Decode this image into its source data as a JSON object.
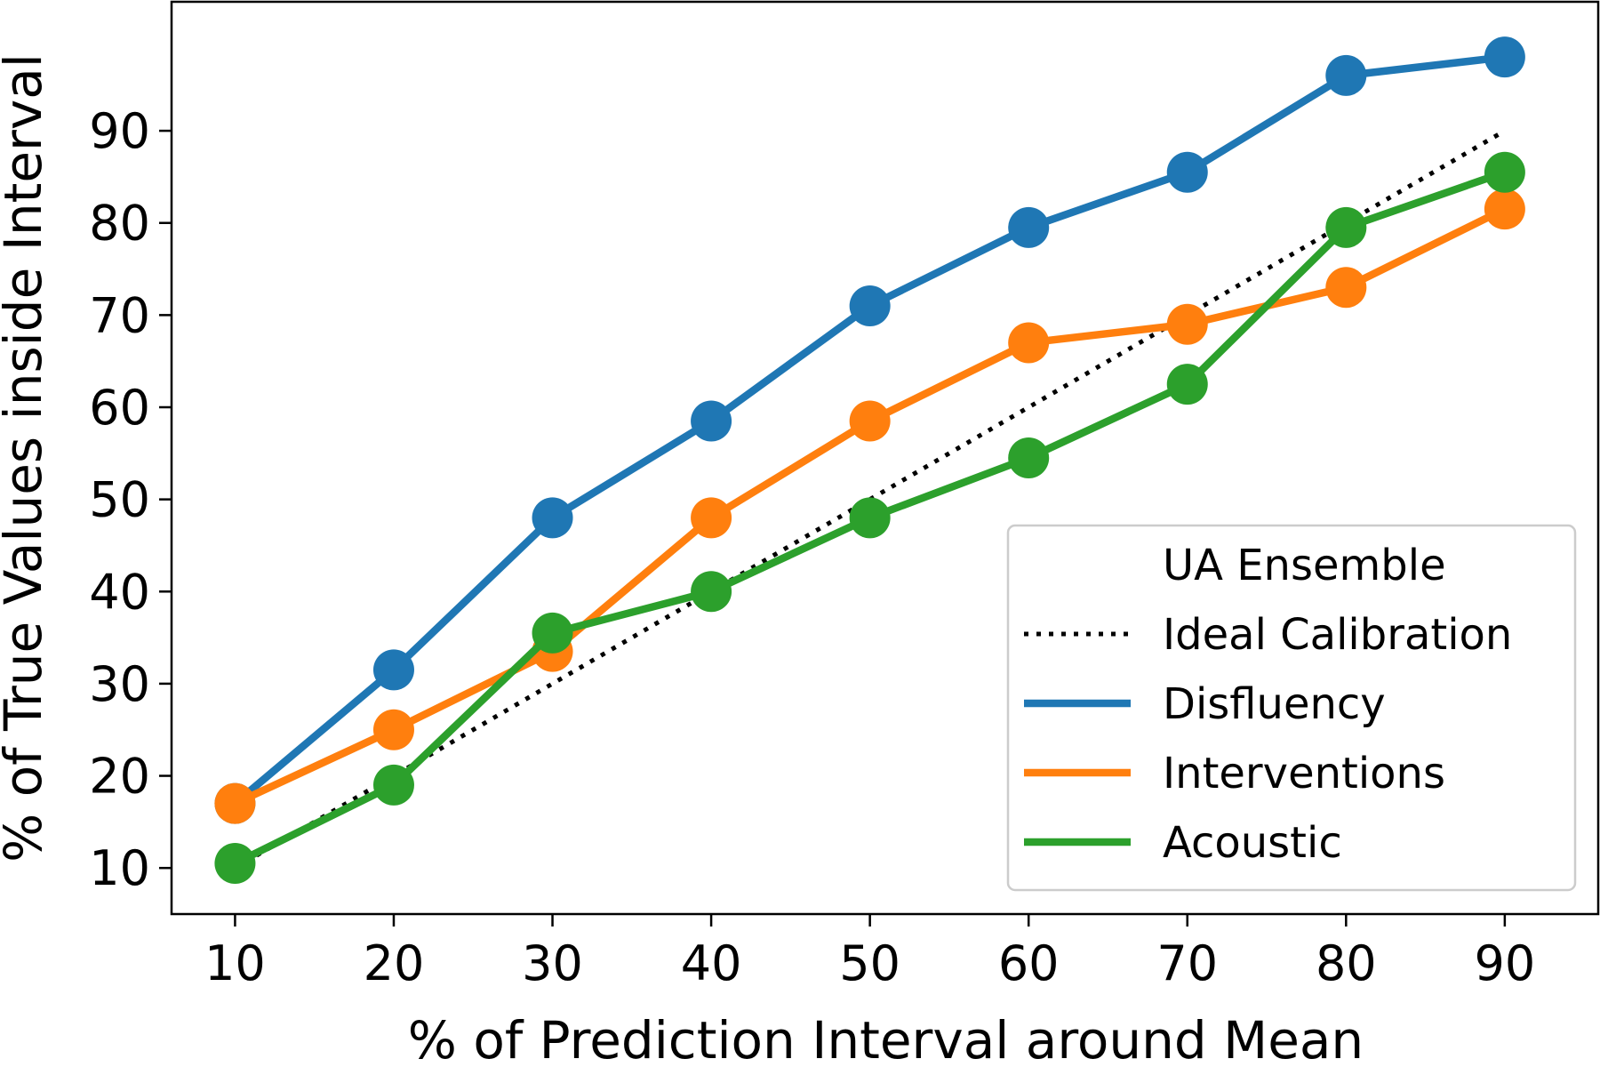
{
  "chart_data": {
    "type": "line",
    "xlabel": "% of Prediction Interval around Mean",
    "ylabel": "% of True Values inside Interval",
    "x": [
      10,
      20,
      30,
      40,
      50,
      60,
      70,
      80,
      90
    ],
    "xlim": [
      6,
      96
    ],
    "ylim": [
      5,
      104
    ],
    "xticks": [
      10,
      20,
      30,
      40,
      50,
      60,
      70,
      80,
      90
    ],
    "yticks": [
      10,
      20,
      30,
      40,
      50,
      60,
      70,
      80,
      90
    ],
    "grid": false,
    "legend": {
      "placement": "lower-right",
      "title": "UA Ensemble"
    },
    "reference_line": {
      "name": "Ideal Calibration",
      "color": "#000000",
      "style": "dotted",
      "values": [
        10,
        20,
        30,
        40,
        50,
        60,
        70,
        80,
        90
      ]
    },
    "series": [
      {
        "name": "Disfluency",
        "color": "#1f77b4",
        "values": [
          17,
          31.5,
          48,
          58.5,
          71,
          79.5,
          85.5,
          96,
          98
        ]
      },
      {
        "name": "Interventions",
        "color": "#ff7f0e",
        "values": [
          17,
          25,
          33.5,
          48,
          58.5,
          67,
          69,
          73,
          81.5
        ]
      },
      {
        "name": "Acoustic",
        "color": "#2ca02c",
        "values": [
          10.5,
          19,
          35.5,
          40,
          48,
          54.5,
          62.5,
          79.5,
          85.5
        ]
      }
    ]
  }
}
